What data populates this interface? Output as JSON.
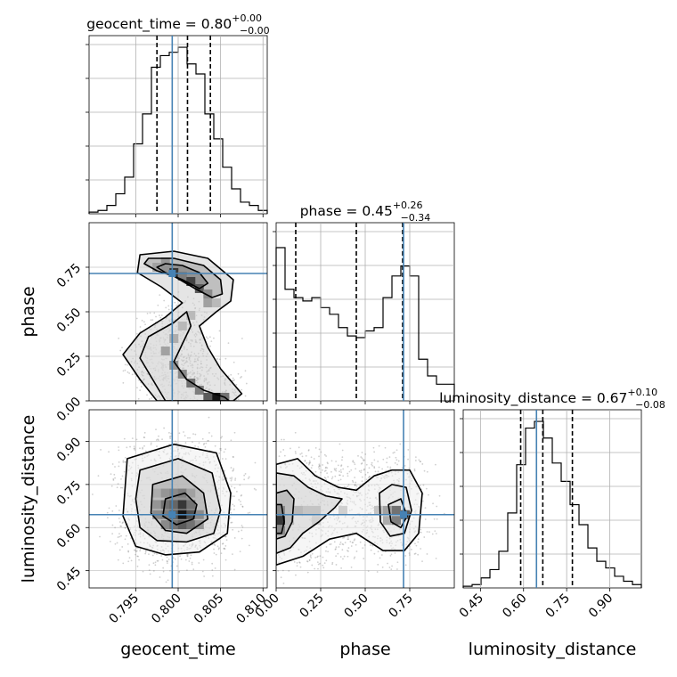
{
  "chart_data": {
    "type": "corner",
    "parameters": [
      "geocent_time",
      "phase",
      "luminosity_distance"
    ],
    "truths": [
      0.7993,
      0.715,
      0.645
    ],
    "diagonal_titles": [
      {
        "param": "geocent_time",
        "label": "geocent_time = ",
        "median": "0.80",
        "upper": "+0.00",
        "lower": "−0.00"
      },
      {
        "param": "phase",
        "label": "phase = ",
        "median": "0.45",
        "upper": "+0.26",
        "lower": "−0.34"
      },
      {
        "param": "luminosity_distance",
        "label": "luminosity_distance = ",
        "median": "0.67",
        "upper": "+0.10",
        "lower": "−0.08"
      }
    ],
    "axes": {
      "geocent_time": {
        "range": [
          0.7895,
          0.8105
        ],
        "ticks": [
          "0.795",
          "0.800",
          "0.805",
          "0.810"
        ],
        "tick_values": [
          0.795,
          0.8,
          0.805,
          0.81
        ]
      },
      "phase": {
        "range": [
          0.0,
          1.0
        ],
        "ticks": [
          "0.00",
          "0.25",
          "0.50",
          "0.75"
        ],
        "tick_values": [
          0.0,
          0.25,
          0.5,
          0.75
        ]
      },
      "luminosity_distance": {
        "range": [
          0.39,
          1.01
        ],
        "ticks": [
          "0.45",
          "0.60",
          "0.75",
          "0.90"
        ],
        "tick_values": [
          0.45,
          0.6,
          0.75,
          0.9
        ]
      }
    },
    "histograms": [
      {
        "param": "geocent_time",
        "bin_edges": [
          0.7895,
          0.79055,
          0.7916,
          0.79265,
          0.7937,
          0.79475,
          0.7958,
          0.79685,
          0.7979,
          0.79895,
          0.8,
          0.80105,
          0.8021,
          0.80315,
          0.8042,
          0.80525,
          0.8063,
          0.80735,
          0.8084,
          0.80945,
          0.8105
        ],
        "counts": [
          0.01,
          0.02,
          0.05,
          0.12,
          0.22,
          0.42,
          0.6,
          0.88,
          0.95,
          0.97,
          1.0,
          0.9,
          0.84,
          0.6,
          0.45,
          0.28,
          0.15,
          0.07,
          0.05,
          0.02
        ],
        "quantiles": [
          0.7975,
          0.8011,
          0.8038
        ]
      },
      {
        "param": "phase",
        "bin_edges": [
          0.0,
          0.05,
          0.1,
          0.15,
          0.2,
          0.25,
          0.3,
          0.35,
          0.4,
          0.45,
          0.5,
          0.55,
          0.6,
          0.65,
          0.7,
          0.75,
          0.8,
          0.85,
          0.9,
          0.95,
          1.0
        ],
        "counts": [
          0.92,
          0.67,
          0.62,
          0.6,
          0.62,
          0.56,
          0.52,
          0.44,
          0.39,
          0.38,
          0.42,
          0.44,
          0.62,
          0.75,
          0.81,
          0.75,
          0.25,
          0.15,
          0.1,
          0.1
        ],
        "quantiles": [
          0.11,
          0.45,
          0.71
        ]
      },
      {
        "param": "luminosity_distance",
        "bin_edges": [
          0.39,
          0.421,
          0.452,
          0.483,
          0.514,
          0.545,
          0.576,
          0.607,
          0.638,
          0.669,
          0.7,
          0.731,
          0.762,
          0.793,
          0.824,
          0.855,
          0.886,
          0.917,
          0.948,
          0.979,
          1.01
        ],
        "counts": [
          0.01,
          0.02,
          0.06,
          0.11,
          0.22,
          0.45,
          0.74,
          0.96,
          1.0,
          0.9,
          0.75,
          0.64,
          0.5,
          0.38,
          0.24,
          0.16,
          0.12,
          0.07,
          0.04,
          0.02
        ],
        "quantiles": [
          0.59,
          0.667,
          0.77
        ]
      }
    ],
    "scatter_panels": [
      {
        "x": "geocent_time",
        "y": "phase",
        "density_cells": [
          {
            "x": 0.7995,
            "y": 0.72,
            "v": 0.85
          },
          {
            "x": 0.8005,
            "y": 0.7,
            "v": 0.55
          },
          {
            "x": 0.8015,
            "y": 0.67,
            "v": 0.8
          },
          {
            "x": 0.8025,
            "y": 0.63,
            "v": 0.7
          },
          {
            "x": 0.8035,
            "y": 0.6,
            "v": 0.5
          },
          {
            "x": 0.8035,
            "y": 0.55,
            "v": 0.4
          },
          {
            "x": 0.8045,
            "y": 0.55,
            "v": 0.3
          },
          {
            "x": 0.7985,
            "y": 0.78,
            "v": 0.45
          },
          {
            "x": 0.7975,
            "y": 0.75,
            "v": 0.4
          },
          {
            "x": 0.7995,
            "y": 0.35,
            "v": 0.35
          },
          {
            "x": 0.7985,
            "y": 0.28,
            "v": 0.4
          },
          {
            "x": 0.7995,
            "y": 0.2,
            "v": 0.45
          },
          {
            "x": 0.8005,
            "y": 0.15,
            "v": 0.5
          },
          {
            "x": 0.8015,
            "y": 0.1,
            "v": 0.6
          },
          {
            "x": 0.8025,
            "y": 0.06,
            "v": 0.55
          },
          {
            "x": 0.8045,
            "y": 0.02,
            "v": 1.0
          },
          {
            "x": 0.8035,
            "y": 0.02,
            "v": 0.7
          },
          {
            "x": 0.8055,
            "y": 0.02,
            "v": 0.6
          },
          {
            "x": 0.8005,
            "y": 0.42,
            "v": 0.3
          },
          {
            "x": 0.8015,
            "y": 0.48,
            "v": 0.3
          }
        ],
        "contours": [
          [
            [
              0.7985,
              0.77
            ],
            [
              0.8005,
              0.76
            ],
            [
              0.8025,
              0.72
            ],
            [
              0.8035,
              0.66
            ],
            [
              0.8025,
              0.63
            ],
            [
              0.8005,
              0.68
            ],
            [
              0.7985,
              0.72
            ],
            [
              0.7975,
              0.75
            ]
          ],
          [
            [
              0.7965,
              0.8
            ],
            [
              0.7995,
              0.8
            ],
            [
              0.803,
              0.76
            ],
            [
              0.805,
              0.68
            ],
            [
              0.8052,
              0.6
            ],
            [
              0.804,
              0.58
            ],
            [
              0.802,
              0.63
            ],
            [
              0.7995,
              0.7
            ],
            [
              0.7975,
              0.73
            ],
            [
              0.796,
              0.77
            ]
          ],
          [
            [
              0.7955,
              0.82
            ],
            [
              0.7995,
              0.84
            ],
            [
              0.8035,
              0.8
            ],
            [
              0.8065,
              0.68
            ],
            [
              0.8062,
              0.56
            ],
            [
              0.8045,
              0.5
            ],
            [
              0.8025,
              0.42
            ],
            [
              0.8035,
              0.3
            ],
            [
              0.805,
              0.18
            ],
            [
              0.8075,
              0.04
            ],
            [
              0.8065,
              0.0
            ],
            [
              0.7975,
              0.0
            ],
            [
              0.7955,
              0.12
            ],
            [
              0.7935,
              0.26
            ],
            [
              0.7955,
              0.38
            ],
            [
              0.7985,
              0.47
            ],
            [
              0.8005,
              0.55
            ],
            [
              0.798,
              0.64
            ],
            [
              0.7952,
              0.72
            ]
          ],
          [
            [
              0.7965,
              0.36
            ],
            [
              0.7995,
              0.44
            ],
            [
              0.801,
              0.5
            ],
            [
              0.8015,
              0.42
            ],
            [
              0.8005,
              0.32
            ],
            [
              0.7995,
              0.22
            ],
            [
              0.801,
              0.12
            ],
            [
              0.803,
              0.06
            ],
            [
              0.8055,
              0.02
            ],
            [
              0.806,
              0.0
            ],
            [
              0.7985,
              0.0
            ],
            [
              0.797,
              0.12
            ],
            [
              0.7955,
              0.24
            ]
          ]
        ]
      },
      {
        "x": "geocent_time",
        "y": "luminosity_distance",
        "density_cells": [
          {
            "x": 0.7975,
            "y": 0.72,
            "v": 0.35
          },
          {
            "x": 0.7985,
            "y": 0.72,
            "v": 0.45
          },
          {
            "x": 0.7995,
            "y": 0.72,
            "v": 0.5
          },
          {
            "x": 0.8005,
            "y": 0.72,
            "v": 0.55
          },
          {
            "x": 0.8015,
            "y": 0.72,
            "v": 0.4
          },
          {
            "x": 0.7975,
            "y": 0.68,
            "v": 0.45
          },
          {
            "x": 0.7985,
            "y": 0.68,
            "v": 0.6
          },
          {
            "x": 0.7995,
            "y": 0.68,
            "v": 0.65
          },
          {
            "x": 0.8005,
            "y": 0.68,
            "v": 0.85
          },
          {
            "x": 0.8015,
            "y": 0.68,
            "v": 0.6
          },
          {
            "x": 0.7975,
            "y": 0.645,
            "v": 0.5
          },
          {
            "x": 0.7985,
            "y": 0.645,
            "v": 0.55
          },
          {
            "x": 0.7995,
            "y": 0.645,
            "v": 0.7
          },
          {
            "x": 0.8005,
            "y": 0.645,
            "v": 1.0
          },
          {
            "x": 0.8015,
            "y": 0.645,
            "v": 0.75
          },
          {
            "x": 0.8025,
            "y": 0.645,
            "v": 0.5
          },
          {
            "x": 0.7985,
            "y": 0.61,
            "v": 0.5
          },
          {
            "x": 0.7995,
            "y": 0.61,
            "v": 0.6
          },
          {
            "x": 0.8005,
            "y": 0.61,
            "v": 0.7
          },
          {
            "x": 0.8015,
            "y": 0.61,
            "v": 0.6
          },
          {
            "x": 0.8025,
            "y": 0.61,
            "v": 0.45
          }
        ],
        "contours": [
          [
            [
              0.7985,
              0.7
            ],
            [
              0.8008,
              0.72
            ],
            [
              0.8022,
              0.68
            ],
            [
              0.8018,
              0.63
            ],
            [
              0.7998,
              0.61
            ],
            [
              0.7982,
              0.64
            ]
          ],
          [
            [
              0.797,
              0.75
            ],
            [
              0.8005,
              0.78
            ],
            [
              0.803,
              0.72
            ],
            [
              0.8035,
              0.63
            ],
            [
              0.801,
              0.58
            ],
            [
              0.7985,
              0.59
            ],
            [
              0.7968,
              0.65
            ]
          ],
          [
            [
              0.7955,
              0.8
            ],
            [
              0.8,
              0.84
            ],
            [
              0.804,
              0.79
            ],
            [
              0.805,
              0.66
            ],
            [
              0.8042,
              0.58
            ],
            [
              0.801,
              0.55
            ],
            [
              0.7975,
              0.555
            ],
            [
              0.7955,
              0.6
            ],
            [
              0.795,
              0.7
            ]
          ],
          [
            [
              0.794,
              0.84
            ],
            [
              0.7995,
              0.89
            ],
            [
              0.8045,
              0.86
            ],
            [
              0.8062,
              0.72
            ],
            [
              0.8058,
              0.58
            ],
            [
              0.8025,
              0.515
            ],
            [
              0.7985,
              0.505
            ],
            [
              0.795,
              0.535
            ],
            [
              0.7935,
              0.64
            ]
          ]
        ]
      },
      {
        "x": "phase",
        "y": "luminosity_distance",
        "density_cells": [
          {
            "x": 0.025,
            "y": 0.625,
            "v": 0.85
          },
          {
            "x": 0.025,
            "y": 0.66,
            "v": 0.5
          },
          {
            "x": 0.025,
            "y": 0.59,
            "v": 0.5
          },
          {
            "x": 0.075,
            "y": 0.625,
            "v": 0.3
          },
          {
            "x": 0.125,
            "y": 0.66,
            "v": 0.3
          },
          {
            "x": 0.175,
            "y": 0.66,
            "v": 0.25
          },
          {
            "x": 0.225,
            "y": 0.66,
            "v": 0.25
          },
          {
            "x": 0.225,
            "y": 0.625,
            "v": 0.2
          },
          {
            "x": 0.375,
            "y": 0.66,
            "v": 0.2
          },
          {
            "x": 0.625,
            "y": 0.66,
            "v": 0.4
          },
          {
            "x": 0.675,
            "y": 0.66,
            "v": 0.6
          },
          {
            "x": 0.675,
            "y": 0.625,
            "v": 0.55
          },
          {
            "x": 0.725,
            "y": 0.645,
            "v": 0.7
          },
          {
            "x": 0.625,
            "y": 0.625,
            "v": 0.35
          },
          {
            "x": 0.575,
            "y": 0.66,
            "v": 0.25
          }
        ],
        "contours": [
          [
            [
              0.0,
              0.68
            ],
            [
              0.03,
              0.68
            ],
            [
              0.045,
              0.62
            ],
            [
              0.03,
              0.58
            ],
            [
              0.0,
              0.58
            ]
          ],
          [
            [
              0.0,
              0.72
            ],
            [
              0.06,
              0.73
            ],
            [
              0.1,
              0.7
            ],
            [
              0.09,
              0.62
            ],
            [
              0.05,
              0.57
            ],
            [
              0.0,
              0.56
            ]
          ],
          [
            [
              0.0,
              0.79
            ],
            [
              0.1,
              0.78
            ],
            [
              0.18,
              0.74
            ],
            [
              0.28,
              0.71
            ],
            [
              0.37,
              0.7
            ],
            [
              0.33,
              0.67
            ],
            [
              0.24,
              0.62
            ],
            [
              0.15,
              0.58
            ],
            [
              0.08,
              0.53
            ],
            [
              0.0,
              0.51
            ]
          ],
          [
            [
              0.0,
              0.82
            ],
            [
              0.12,
              0.84
            ],
            [
              0.22,
              0.78
            ],
            [
              0.35,
              0.74
            ],
            [
              0.45,
              0.73
            ],
            [
              0.55,
              0.78
            ],
            [
              0.65,
              0.8
            ],
            [
              0.75,
              0.8
            ],
            [
              0.82,
              0.72
            ],
            [
              0.8,
              0.58
            ],
            [
              0.72,
              0.52
            ],
            [
              0.6,
              0.52
            ],
            [
              0.45,
              0.58
            ],
            [
              0.3,
              0.56
            ],
            [
              0.15,
              0.5
            ],
            [
              0.0,
              0.47
            ]
          ],
          [
            [
              0.58,
              0.72
            ],
            [
              0.65,
              0.75
            ],
            [
              0.73,
              0.74
            ],
            [
              0.76,
              0.66
            ],
            [
              0.72,
              0.58
            ],
            [
              0.64,
              0.57
            ],
            [
              0.585,
              0.62
            ]
          ],
          [
            [
              0.63,
              0.68
            ],
            [
              0.7,
              0.7
            ],
            [
              0.735,
              0.64
            ],
            [
              0.7,
              0.6
            ],
            [
              0.645,
              0.62
            ]
          ]
        ]
      }
    ]
  }
}
